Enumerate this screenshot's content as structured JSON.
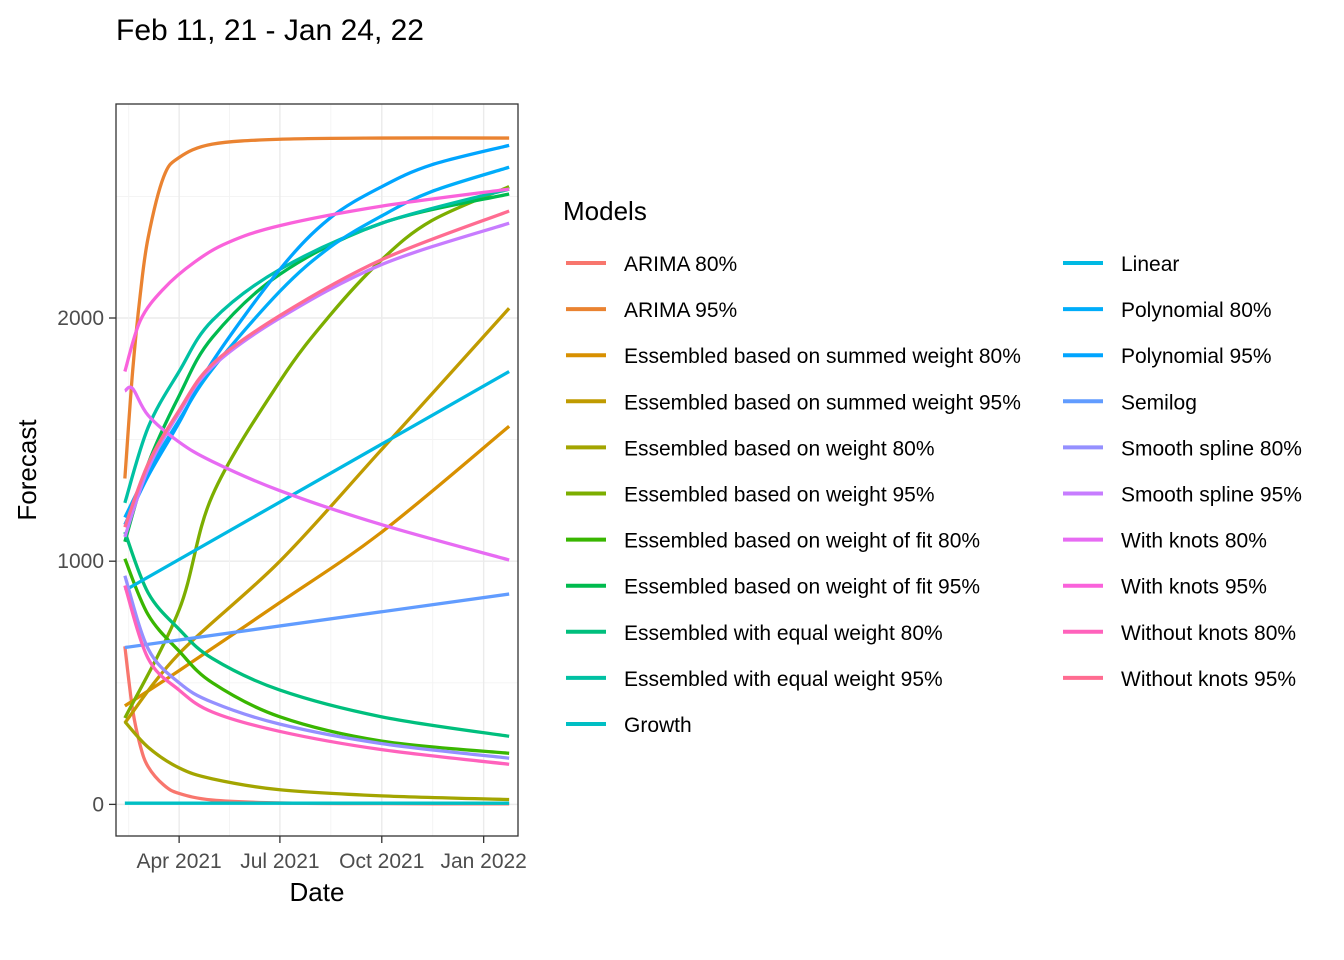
{
  "chart_data": {
    "type": "line",
    "title": "Feb 11, 21 - Jan 24, 22",
    "xlabel": "Date",
    "ylabel": "Forecast",
    "xlim": [
      "2021-02-03",
      "2022-02-01"
    ],
    "ylim": [
      -130,
      2880
    ],
    "x_ticks": [
      {
        "date": "2021-04-01",
        "label": "Apr 2021"
      },
      {
        "date": "2021-07-01",
        "label": "Jul 2021"
      },
      {
        "date": "2021-10-01",
        "label": "Oct 2021"
      },
      {
        "date": "2022-01-01",
        "label": "Jan 2022"
      }
    ],
    "y_ticks": [
      0,
      1000,
      2000
    ],
    "grid": true,
    "legend": {
      "title": "Models",
      "position": "right",
      "columns": 2
    },
    "x_start": "2021-02-11",
    "x_end": "2022-01-24",
    "series": [
      {
        "name": "ARIMA 80%",
        "color": "#F8766D",
        "values": [
          {
            "x": "2021-02-11",
            "y": 650
          },
          {
            "x": "2021-02-18",
            "y": 390
          },
          {
            "x": "2021-02-25",
            "y": 240
          },
          {
            "x": "2021-03-04",
            "y": 155
          },
          {
            "x": "2021-03-18",
            "y": 80
          },
          {
            "x": "2021-04-01",
            "y": 45
          },
          {
            "x": "2021-05-01",
            "y": 18
          },
          {
            "x": "2021-07-01",
            "y": 6
          },
          {
            "x": "2021-10-01",
            "y": 3
          },
          {
            "x": "2022-01-24",
            "y": 2
          }
        ]
      },
      {
        "name": "ARIMA 95%",
        "color": "#EA8331",
        "values": [
          {
            "x": "2021-02-11",
            "y": 1340
          },
          {
            "x": "2021-02-18",
            "y": 1780
          },
          {
            "x": "2021-02-25",
            "y": 2100
          },
          {
            "x": "2021-03-04",
            "y": 2330
          },
          {
            "x": "2021-03-18",
            "y": 2580
          },
          {
            "x": "2021-04-01",
            "y": 2660
          },
          {
            "x": "2021-05-01",
            "y": 2715
          },
          {
            "x": "2021-07-01",
            "y": 2735
          },
          {
            "x": "2021-10-01",
            "y": 2740
          },
          {
            "x": "2022-01-24",
            "y": 2740
          }
        ]
      },
      {
        "name": "Essembled based on summed weight 80%",
        "color": "#D89000",
        "values": [
          {
            "x": "2021-02-11",
            "y": 405
          },
          {
            "x": "2021-04-01",
            "y": 550
          },
          {
            "x": "2021-07-01",
            "y": 830
          },
          {
            "x": "2021-10-01",
            "y": 1120
          },
          {
            "x": "2022-01-24",
            "y": 1555
          }
        ]
      },
      {
        "name": "Essembled based on summed weight 95%",
        "color": "#C09B00",
        "values": [
          {
            "x": "2021-02-11",
            "y": 335
          },
          {
            "x": "2021-04-01",
            "y": 620
          },
          {
            "x": "2021-07-01",
            "y": 1000
          },
          {
            "x": "2021-10-01",
            "y": 1460
          },
          {
            "x": "2022-01-24",
            "y": 2040
          }
        ]
      },
      {
        "name": "Essembled based on weight 80%",
        "color": "#A3A500",
        "values": [
          {
            "x": "2021-02-11",
            "y": 340
          },
          {
            "x": "2021-03-04",
            "y": 235
          },
          {
            "x": "2021-04-01",
            "y": 150
          },
          {
            "x": "2021-05-01",
            "y": 105
          },
          {
            "x": "2021-07-01",
            "y": 60
          },
          {
            "x": "2021-10-01",
            "y": 35
          },
          {
            "x": "2022-01-24",
            "y": 20
          }
        ]
      },
      {
        "name": "Essembled based on weight 95%",
        "color": "#7CAE00",
        "values": [
          {
            "x": "2021-02-11",
            "y": 355
          },
          {
            "x": "2021-04-01",
            "y": 800
          },
          {
            "x": "2021-05-01",
            "y": 1270
          },
          {
            "x": "2021-07-01",
            "y": 1740
          },
          {
            "x": "2021-08-15",
            "y": 2010
          },
          {
            "x": "2021-10-01",
            "y": 2240
          },
          {
            "x": "2021-11-15",
            "y": 2400
          },
          {
            "x": "2022-01-24",
            "y": 2540
          }
        ]
      },
      {
        "name": "Essembled based on weight of fit 80%",
        "color": "#39B600",
        "values": [
          {
            "x": "2021-02-11",
            "y": 1010
          },
          {
            "x": "2021-03-04",
            "y": 780
          },
          {
            "x": "2021-04-01",
            "y": 630
          },
          {
            "x": "2021-05-01",
            "y": 500
          },
          {
            "x": "2021-07-01",
            "y": 360
          },
          {
            "x": "2021-10-01",
            "y": 260
          },
          {
            "x": "2022-01-24",
            "y": 210
          }
        ]
      },
      {
        "name": "Essembled based on weight of fit 95%",
        "color": "#00BB4E",
        "values": [
          {
            "x": "2021-02-11",
            "y": 1080
          },
          {
            "x": "2021-03-04",
            "y": 1400
          },
          {
            "x": "2021-04-01",
            "y": 1680
          },
          {
            "x": "2021-05-01",
            "y": 1920
          },
          {
            "x": "2021-07-01",
            "y": 2180
          },
          {
            "x": "2021-10-01",
            "y": 2390
          },
          {
            "x": "2022-01-24",
            "y": 2510
          }
        ]
      },
      {
        "name": "Essembled with equal weight 80%",
        "color": "#00BF7D",
        "values": [
          {
            "x": "2021-02-11",
            "y": 1120
          },
          {
            "x": "2021-03-04",
            "y": 870
          },
          {
            "x": "2021-04-01",
            "y": 720
          },
          {
            "x": "2021-05-01",
            "y": 600
          },
          {
            "x": "2021-07-01",
            "y": 470
          },
          {
            "x": "2021-10-01",
            "y": 360
          },
          {
            "x": "2022-01-24",
            "y": 280
          }
        ]
      },
      {
        "name": "Essembled with equal weight 95%",
        "color": "#00C1A3",
        "values": [
          {
            "x": "2021-02-11",
            "y": 1240
          },
          {
            "x": "2021-03-04",
            "y": 1550
          },
          {
            "x": "2021-04-01",
            "y": 1780
          },
          {
            "x": "2021-05-01",
            "y": 1990
          },
          {
            "x": "2021-07-01",
            "y": 2200
          },
          {
            "x": "2021-10-01",
            "y": 2390
          },
          {
            "x": "2022-01-24",
            "y": 2530
          }
        ]
      },
      {
        "name": "Growth",
        "color": "#00BFC4",
        "values": [
          {
            "x": "2021-02-11",
            "y": 5
          },
          {
            "x": "2022-01-24",
            "y": 5
          }
        ]
      },
      {
        "name": "Linear",
        "color": "#00B9E3",
        "values": [
          {
            "x": "2021-02-11",
            "y": 880
          },
          {
            "x": "2022-01-24",
            "y": 1780
          }
        ]
      },
      {
        "name": "Polynomial 80%",
        "color": "#00ADFA",
        "values": [
          {
            "x": "2021-02-11",
            "y": 1180
          },
          {
            "x": "2021-03-04",
            "y": 1370
          },
          {
            "x": "2021-04-01",
            "y": 1580
          },
          {
            "x": "2021-05-01",
            "y": 1790
          },
          {
            "x": "2021-07-01",
            "y": 2110
          },
          {
            "x": "2021-08-15",
            "y": 2290
          },
          {
            "x": "2021-10-01",
            "y": 2420
          },
          {
            "x": "2021-11-15",
            "y": 2520
          },
          {
            "x": "2022-01-24",
            "y": 2620
          }
        ]
      },
      {
        "name": "Polynomial 95%",
        "color": "#00A5FF",
        "values": [
          {
            "x": "2021-02-11",
            "y": 1150
          },
          {
            "x": "2021-03-04",
            "y": 1350
          },
          {
            "x": "2021-04-01",
            "y": 1570
          },
          {
            "x": "2021-05-01",
            "y": 1820
          },
          {
            "x": "2021-07-01",
            "y": 2200
          },
          {
            "x": "2021-08-15",
            "y": 2410
          },
          {
            "x": "2021-10-01",
            "y": 2540
          },
          {
            "x": "2021-11-15",
            "y": 2630
          },
          {
            "x": "2022-01-24",
            "y": 2710
          }
        ]
      },
      {
        "name": "Semilog",
        "color": "#619CFF",
        "values": [
          {
            "x": "2021-02-11",
            "y": 645
          },
          {
            "x": "2022-01-24",
            "y": 865
          }
        ]
      },
      {
        "name": "Smooth spline 80%",
        "color": "#9590FF",
        "values": [
          {
            "x": "2021-02-11",
            "y": 940
          },
          {
            "x": "2021-03-04",
            "y": 640
          },
          {
            "x": "2021-04-01",
            "y": 500
          },
          {
            "x": "2021-05-01",
            "y": 420
          },
          {
            "x": "2021-07-01",
            "y": 330
          },
          {
            "x": "2021-10-01",
            "y": 250
          },
          {
            "x": "2022-01-24",
            "y": 190
          }
        ]
      },
      {
        "name": "Smooth spline 95%",
        "color": "#C77CFF",
        "values": [
          {
            "x": "2021-02-11",
            "y": 1100
          },
          {
            "x": "2021-03-04",
            "y": 1380
          },
          {
            "x": "2021-04-01",
            "y": 1610
          },
          {
            "x": "2021-05-01",
            "y": 1800
          },
          {
            "x": "2021-07-01",
            "y": 2000
          },
          {
            "x": "2021-10-01",
            "y": 2220
          },
          {
            "x": "2022-01-24",
            "y": 2390
          }
        ]
      },
      {
        "name": "With knots 80%",
        "color": "#E76BF3",
        "values": [
          {
            "x": "2021-02-11",
            "y": 1700
          },
          {
            "x": "2021-02-18",
            "y": 1710
          },
          {
            "x": "2021-03-04",
            "y": 1600
          },
          {
            "x": "2021-04-01",
            "y": 1490
          },
          {
            "x": "2021-05-01",
            "y": 1410
          },
          {
            "x": "2021-07-01",
            "y": 1290
          },
          {
            "x": "2021-10-01",
            "y": 1150
          },
          {
            "x": "2022-01-24",
            "y": 1005
          }
        ]
      },
      {
        "name": "With knots 95%",
        "color": "#FA62DB",
        "values": [
          {
            "x": "2021-02-11",
            "y": 1780
          },
          {
            "x": "2021-02-25",
            "y": 1990
          },
          {
            "x": "2021-03-18",
            "y": 2120
          },
          {
            "x": "2021-04-15",
            "y": 2230
          },
          {
            "x": "2021-05-15",
            "y": 2310
          },
          {
            "x": "2021-07-01",
            "y": 2380
          },
          {
            "x": "2021-10-01",
            "y": 2460
          },
          {
            "x": "2022-01-24",
            "y": 2530
          }
        ]
      },
      {
        "name": "Without knots 80%",
        "color": "#FF62BC",
        "values": [
          {
            "x": "2021-02-11",
            "y": 900
          },
          {
            "x": "2021-03-04",
            "y": 600
          },
          {
            "x": "2021-04-01",
            "y": 470
          },
          {
            "x": "2021-05-01",
            "y": 380
          },
          {
            "x": "2021-07-01",
            "y": 300
          },
          {
            "x": "2021-10-01",
            "y": 225
          },
          {
            "x": "2022-01-24",
            "y": 165
          }
        ]
      },
      {
        "name": "Without knots 95%",
        "color": "#FF6C91",
        "values": [
          {
            "x": "2021-02-11",
            "y": 1140
          },
          {
            "x": "2021-03-04",
            "y": 1400
          },
          {
            "x": "2021-04-01",
            "y": 1620
          },
          {
            "x": "2021-05-01",
            "y": 1810
          },
          {
            "x": "2021-07-01",
            "y": 2010
          },
          {
            "x": "2021-10-01",
            "y": 2240
          },
          {
            "x": "2022-01-24",
            "y": 2440
          }
        ]
      }
    ]
  }
}
